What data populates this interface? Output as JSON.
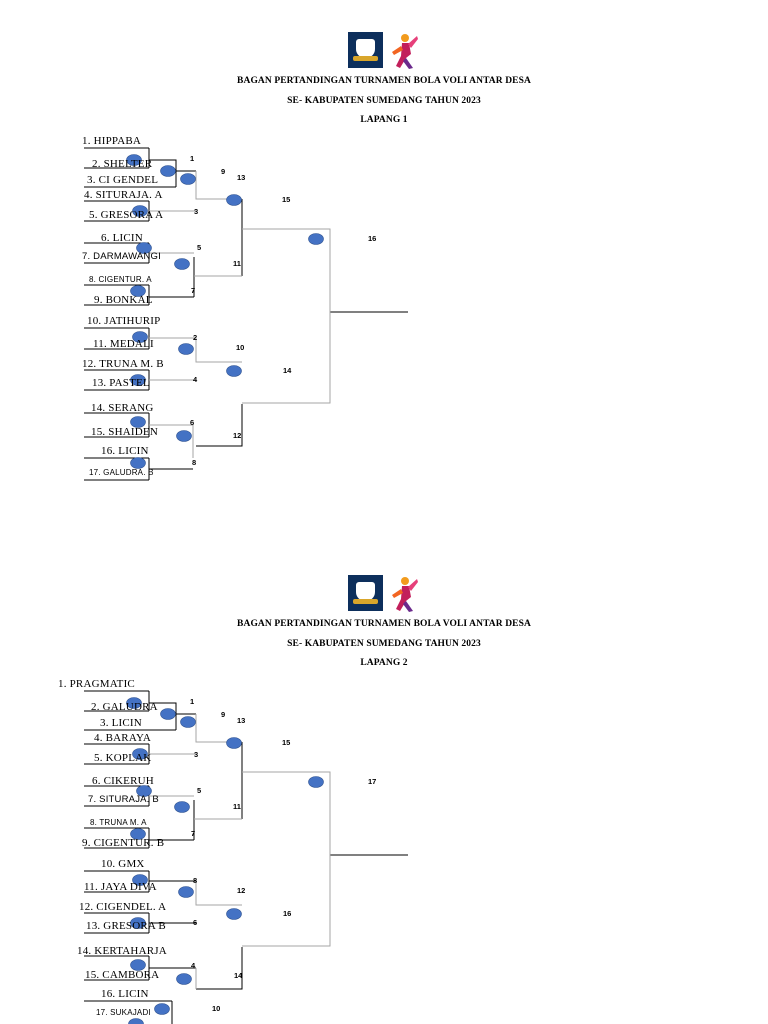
{
  "brackets": [
    {
      "title_lines": [
        "BAGAN PERTANDINGAN TURNAMEN BOLA VOLI ANTAR DESA",
        "SE- KABUPATEN SUMEDANG TAHUN 2023",
        "LAPANG 1"
      ],
      "teams": [
        "1.   HIPPABA",
        "2. SHELTER",
        "3. CI GENDEL",
        "4. SITURAJA. A",
        "5. GRESORA A",
        "6. LICIN",
        "7. DARMAWANGI",
        "8. CIGENTUR. A",
        "9. BONKAL",
        "10. JATIHURIP",
        "11. MEDALI",
        "12. TRUNA M. B",
        "13. PASTEL",
        "14. SERANG",
        "15. SHAIDEN",
        "16. LICIN",
        "17. GALUDRA. B"
      ],
      "match_numbers": [
        "1",
        "9",
        "13",
        "15",
        "3",
        "16",
        "5",
        "11",
        "7",
        "2",
        "10",
        "14",
        "4",
        "6",
        "12",
        "8"
      ]
    },
    {
      "title_lines": [
        "BAGAN PERTANDINGAN TURNAMEN BOLA VOLI ANTAR DESA",
        "SE- KABUPATEN SUMEDANG TAHUN 2023",
        "LAPANG 2"
      ],
      "teams": [
        "1.   PRAGMATIC",
        "2. GALUDRA",
        "3. LICIN",
        "4. BARAYA",
        "5. KOPLAK",
        "6. CIKERUH",
        "7. SITURAJA. B",
        "8. TRUNA M. A",
        "9. CIGENTUR. B",
        "10. GMX",
        "11. JAYA DIVA",
        "12. CIGENDEL. A",
        "13. GRESORA B",
        "14. KERTAHARJA",
        "15. CAMBORA",
        "16. LICIN",
        "17. SUKAJADI"
      ],
      "match_numbers": [
        "1",
        "9",
        "13",
        "15",
        "3",
        "17",
        "5",
        "11",
        "7",
        "8",
        "12",
        "16",
        "6",
        "4",
        "14",
        "10"
      ]
    }
  ],
  "colors": {
    "dot": "#4472c4",
    "dot_stroke": "#2f528f",
    "line_dark": "#000000",
    "line_gray": "#a6a6a6",
    "shield": "#0d2f5c"
  },
  "icons": {
    "logo_left": "volleyball-shield-logo",
    "logo_right": "volleyball-player-logo"
  }
}
